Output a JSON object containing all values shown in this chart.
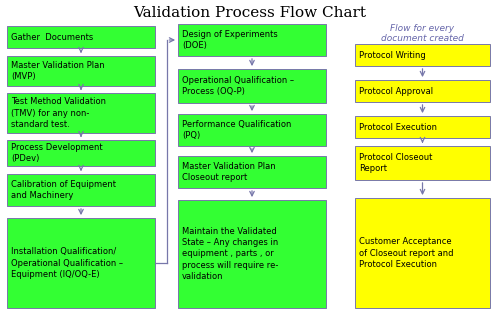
{
  "title": "Validation Process Flow Chart",
  "title_fontsize": 11,
  "background_color": "#ffffff",
  "box_green": "#33ff33",
  "box_yellow": "#ffff00",
  "box_border_color": "#7777aa",
  "arrow_color": "#7777aa",
  "text_color": "#000000",
  "label_color": "#6666aa",
  "left_column": [
    "Gather  Documents",
    "Master Validation Plan\n(MVP)",
    "Test Method Validation\n(TMV) for any non-\nstandard test.",
    "Process Development\n(PDev)",
    "Calibration of Equipment\nand Machinery",
    "Installation Qualification/\nOperational Qualification –\nEquipment (IQ/OQ-E)"
  ],
  "middle_column": [
    "Design of Experiments\n(DOE)",
    "Operational Qualification –\nProcess (OQ-P)",
    "Performance Qualification\n(PQ)",
    "Master Validation Plan\nCloseout report",
    "Maintain the Validated\nState – Any changes in\nequipment , parts , or\nprocess will require re-\nvalidation"
  ],
  "right_column_label": "Flow for every\ndocument created",
  "right_column": [
    "Protocol Writing",
    "Protocol Approval",
    "Protocol Execution",
    "Protocol Closeout\nReport",
    "Customer Acceptance\nof Closeout report and\nProtocol Execution"
  ]
}
